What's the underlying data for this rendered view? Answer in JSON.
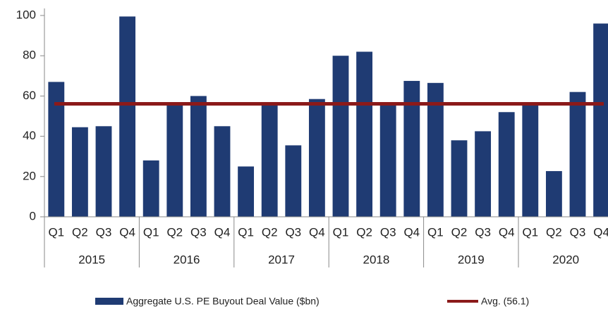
{
  "chart_data": {
    "type": "bar",
    "categories": [
      "Q1",
      "Q2",
      "Q3",
      "Q4",
      "Q1",
      "Q2",
      "Q3",
      "Q4",
      "Q1",
      "Q2",
      "Q3",
      "Q4",
      "Q1",
      "Q2",
      "Q3",
      "Q4",
      "Q1",
      "Q2",
      "Q3",
      "Q4",
      "Q1",
      "Q2",
      "Q3",
      "Q4"
    ],
    "groups": [
      "2015",
      "2016",
      "2017",
      "2018",
      "2019",
      "2020"
    ],
    "series": [
      {
        "name": "Aggregate U.S. PE Buyout Deal Value ($bn)",
        "color": "#1f3b73",
        "values": [
          67,
          44.5,
          45,
          99.5,
          28,
          56.5,
          60,
          45,
          25,
          57,
          35.5,
          58.5,
          80,
          82,
          56.5,
          67.5,
          66.5,
          38,
          42.5,
          52,
          56,
          22.7,
          62,
          96
        ]
      }
    ],
    "average": {
      "name": "Avg. (56.1)",
      "value": 56.1,
      "color": "#8b1a1a"
    },
    "ylim": [
      0,
      100
    ],
    "yticks": [
      0,
      20,
      40,
      60,
      80,
      100
    ]
  }
}
